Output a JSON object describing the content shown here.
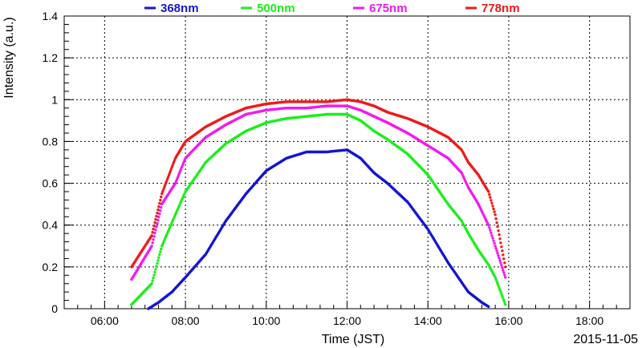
{
  "chart_data": {
    "type": "scatter",
    "xlabel": "Time (JST)",
    "ylabel": "Intensity (a.u.)",
    "date": "2015-11-05",
    "xlim": [
      "05:00",
      "19:00"
    ],
    "ylim": [
      0,
      1.4
    ],
    "grid": true,
    "legend_position": "top",
    "x_ticks": [
      "06:00",
      "08:00",
      "10:00",
      "12:00",
      "14:00",
      "16:00",
      "18:00"
    ],
    "y_ticks": [
      "0",
      "0.2",
      "0.4",
      "0.6",
      "0.8",
      "1",
      "1.2",
      "1.4"
    ],
    "series": [
      {
        "name": "368nm",
        "color": "#1515d5",
        "x": [
          "07:05",
          "07:20",
          "07:40",
          "08:00",
          "08:30",
          "09:00",
          "09:30",
          "10:00",
          "10:30",
          "11:00",
          "11:30",
          "12:00",
          "12:20",
          "12:40",
          "13:00",
          "13:30",
          "14:00",
          "14:30",
          "15:00",
          "15:20",
          "15:30"
        ],
        "y": [
          0.0,
          0.03,
          0.08,
          0.15,
          0.26,
          0.42,
          0.55,
          0.66,
          0.72,
          0.75,
          0.75,
          0.76,
          0.72,
          0.65,
          0.6,
          0.51,
          0.38,
          0.22,
          0.08,
          0.03,
          0.01
        ]
      },
      {
        "name": "500nm",
        "color": "#1aef1a",
        "x": [
          "06:40",
          "07:10",
          "07:25",
          "07:45",
          "08:00",
          "08:30",
          "09:00",
          "09:30",
          "10:00",
          "10:30",
          "11:00",
          "11:30",
          "12:00",
          "12:20",
          "12:40",
          "13:00",
          "13:30",
          "14:00",
          "14:30",
          "14:50",
          "15:00",
          "15:15",
          "15:30",
          "15:40",
          "15:55"
        ],
        "y": [
          0.02,
          0.12,
          0.3,
          0.45,
          0.56,
          0.7,
          0.79,
          0.85,
          0.89,
          0.91,
          0.92,
          0.93,
          0.93,
          0.9,
          0.85,
          0.81,
          0.74,
          0.64,
          0.5,
          0.42,
          0.36,
          0.28,
          0.21,
          0.15,
          0.02
        ]
      },
      {
        "name": "675nm",
        "color": "#f01af0",
        "x": [
          "06:40",
          "07:10",
          "07:25",
          "07:45",
          "08:00",
          "08:30",
          "09:00",
          "09:30",
          "10:00",
          "10:30",
          "11:00",
          "11:30",
          "12:00",
          "12:20",
          "12:40",
          "13:00",
          "13:30",
          "14:00",
          "14:30",
          "14:50",
          "15:00",
          "15:15",
          "15:30",
          "15:40",
          "15:55"
        ],
        "y": [
          0.14,
          0.3,
          0.5,
          0.6,
          0.72,
          0.82,
          0.88,
          0.93,
          0.95,
          0.96,
          0.96,
          0.97,
          0.97,
          0.95,
          0.92,
          0.89,
          0.84,
          0.78,
          0.72,
          0.65,
          0.58,
          0.5,
          0.4,
          0.3,
          0.15
        ]
      },
      {
        "name": "778nm",
        "color": "#ee1a1a",
        "x": [
          "06:40",
          "07:10",
          "07:25",
          "07:45",
          "08:00",
          "08:30",
          "09:00",
          "09:30",
          "10:00",
          "10:30",
          "11:00",
          "11:30",
          "12:00",
          "12:20",
          "12:40",
          "13:00",
          "13:30",
          "14:00",
          "14:30",
          "14:50",
          "15:00",
          "15:15",
          "15:30",
          "15:40",
          "15:55"
        ],
        "y": [
          0.2,
          0.35,
          0.55,
          0.72,
          0.8,
          0.87,
          0.92,
          0.96,
          0.98,
          0.99,
          0.99,
          0.99,
          1.0,
          0.99,
          0.97,
          0.94,
          0.91,
          0.87,
          0.82,
          0.76,
          0.7,
          0.64,
          0.56,
          0.45,
          0.2
        ]
      }
    ]
  }
}
